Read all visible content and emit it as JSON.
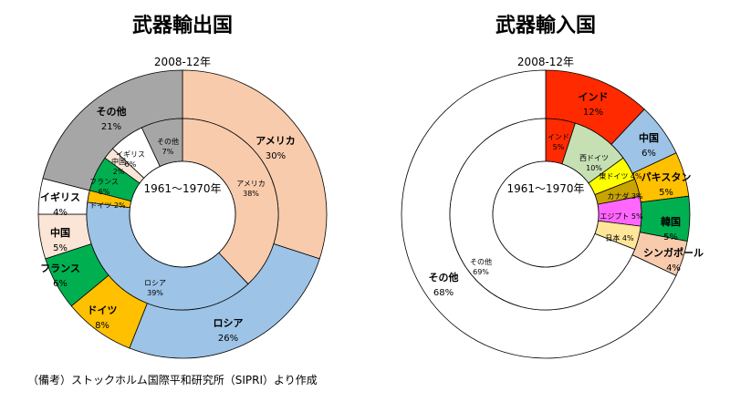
{
  "footnote": "（備考）ストックホルム国際平和研究所（SIPRI）より作成",
  "chart_data": [
    {
      "type": "pie",
      "title": "武器輸出国",
      "subtitle": "2008-12年",
      "center_label": "1961～1970年",
      "outer_ring": [
        {
          "name": "アメリカ",
          "value": 30,
          "label": "30%",
          "color": "#f8cbad"
        },
        {
          "name": "ロシア",
          "value": 26,
          "label": "26%",
          "color": "#9dc3e6"
        },
        {
          "name": "ドイツ",
          "value": 8,
          "label": "8%",
          "color": "#ffc000"
        },
        {
          "name": "フランス",
          "value": 6,
          "label": "6%",
          "color": "#00b050"
        },
        {
          "name": "中国",
          "value": 5,
          "label": "5%",
          "color": "#fbe5d6"
        },
        {
          "name": "イギリス",
          "value": 4,
          "label": "4%",
          "color": "#ffffff"
        },
        {
          "name": "その他",
          "value": 21,
          "label": "21%",
          "color": "#a6a6a6"
        }
      ],
      "inner_ring": [
        {
          "name": "アメリカ",
          "value": 38,
          "label": "38%",
          "color": "#f8cbad"
        },
        {
          "name": "ロシア",
          "value": 39,
          "label": "39%",
          "color": "#9dc3e6"
        },
        {
          "name": "ドイツ",
          "value": 2,
          "label": "2%",
          "color": "#ffc000"
        },
        {
          "name": "フランス",
          "value": 6,
          "label": "6%",
          "color": "#00b050"
        },
        {
          "name": "中国",
          "value": 2,
          "label": "2%",
          "color": "#fbe5d6"
        },
        {
          "name": "イギリス",
          "value": 6,
          "label": "6%",
          "color": "#ffffff"
        },
        {
          "name": "その他",
          "value": 7,
          "label": "7%",
          "color": "#a6a6a6"
        }
      ]
    },
    {
      "type": "pie",
      "title": "武器輸入国",
      "subtitle": "2008-12年",
      "center_label": "1961～1970年",
      "outer_ring": [
        {
          "name": "インド",
          "value": 12,
          "label": "12%",
          "color": "#ff2a00"
        },
        {
          "name": "中国",
          "value": 6,
          "label": "6%",
          "color": "#9dc3e6"
        },
        {
          "name": "パキスタン",
          "value": 5,
          "label": "5%",
          "color": "#ffc000"
        },
        {
          "name": "韓国",
          "value": 5,
          "label": "5%",
          "color": "#00b050"
        },
        {
          "name": "シンガポール",
          "value": 4,
          "label": "4%",
          "color": "#f8cbad"
        },
        {
          "name": "その他",
          "value": 68,
          "label": "68%",
          "color": "#ffffff"
        }
      ],
      "inner_ring": [
        {
          "name": "インド",
          "value": 5,
          "label": "5%",
          "color": "#ff2a00"
        },
        {
          "name": "西ドイツ",
          "value": 10,
          "label": "10%",
          "color": "#c6e0b4"
        },
        {
          "name": "東ドイツ",
          "value": 4,
          "label": "4%",
          "color": "#ffff00"
        },
        {
          "name": "カナダ",
          "value": 3,
          "label": "3%",
          "color": "#c9a400"
        },
        {
          "name": "エジプト",
          "value": 5,
          "label": "5%",
          "color": "#ff66ff"
        },
        {
          "name": "日本",
          "value": 4,
          "label": "4%",
          "color": "#ffe699"
        },
        {
          "name": "その他",
          "value": 69,
          "label": "69%",
          "color": "#ffffff"
        }
      ]
    }
  ]
}
